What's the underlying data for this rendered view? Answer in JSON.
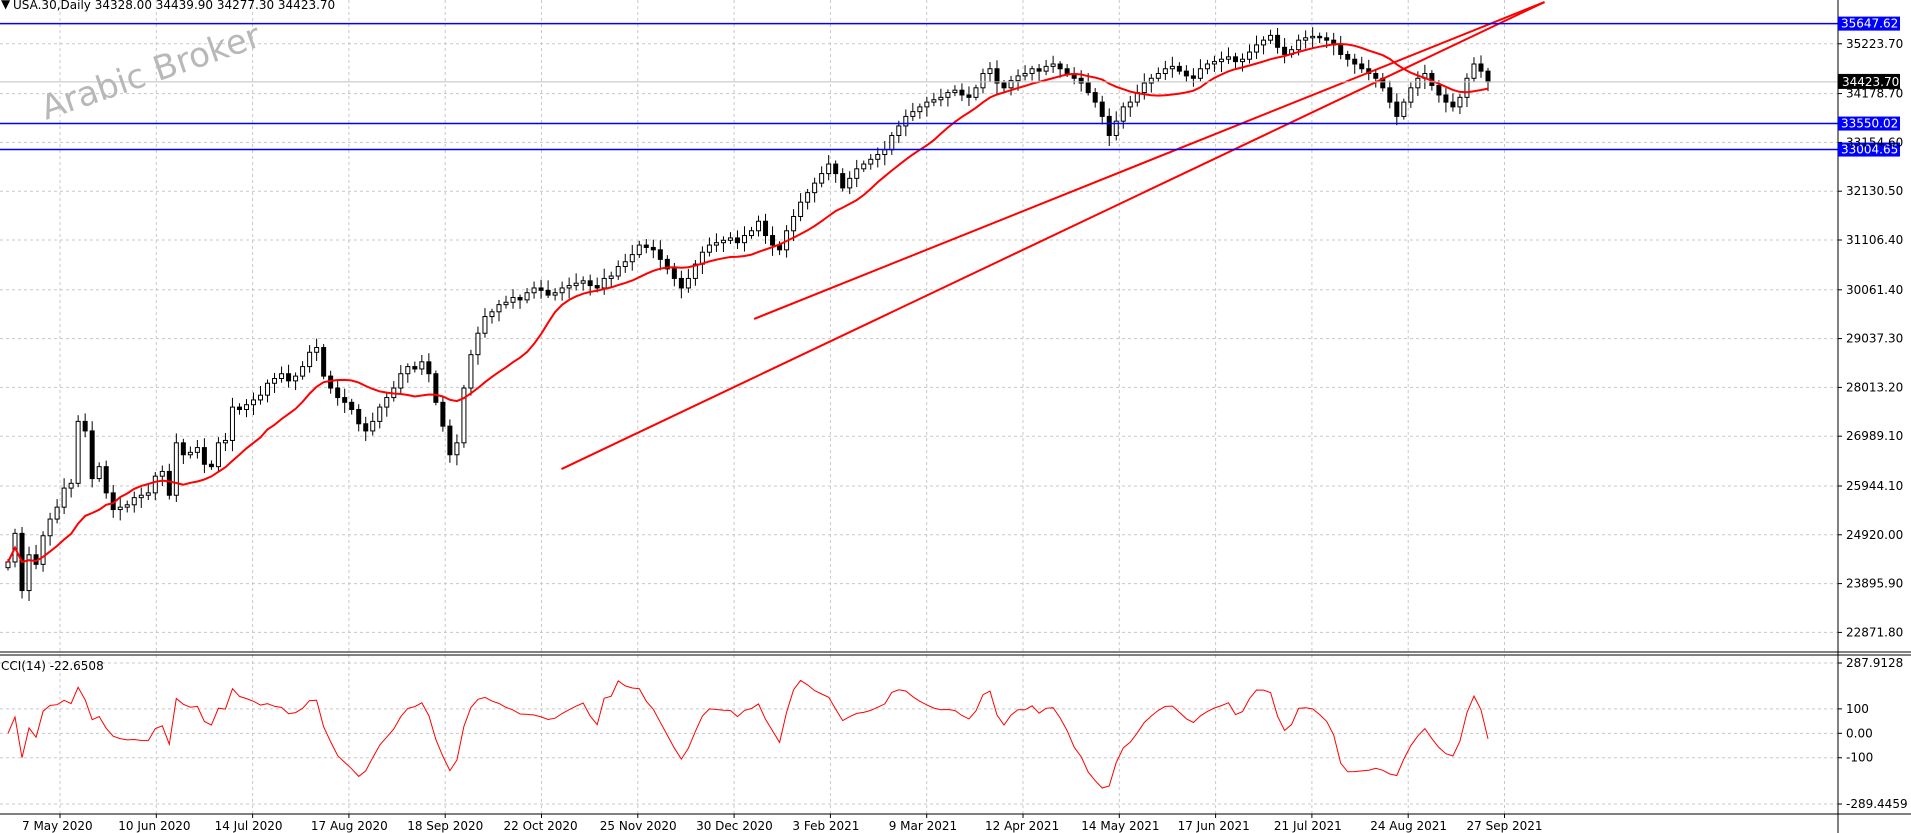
{
  "header": {
    "arrow_glyph": "▼",
    "symbol_text": "USA.30,Daily  34328.00 34439.90 34277.30 34423.70"
  },
  "watermark": {
    "text": "Arabic Broker"
  },
  "colors": {
    "background": "#ffffff",
    "grid": "#c8c8c8",
    "candle": "#000000",
    "moving_average": "#ff0000",
    "trendline": "#ff0000",
    "hline": "#0000ff",
    "hline_tag_bg": "#0000ff",
    "current_price_tag_bg": "#000000",
    "indicator": "#ff0000"
  },
  "chart_data": [
    {
      "type": "candlestick",
      "series_name": "USA.30,Daily",
      "x_ticks": [
        "7 May 2020",
        "10 Jun 2020",
        "14 Jul 2020",
        "17 Aug 2020",
        "18 Sep 2020",
        "22 Oct 2020",
        "25 Nov 2020",
        "30 Dec 2020",
        "3 Feb 2021",
        "9 Mar 2021",
        "12 Apr 2021",
        "14 May 2021",
        "17 Jun 2021",
        "21 Jul 2021",
        "24 Aug 2021",
        "27 Sep 2021"
      ],
      "y_ticks": [
        22871.8,
        23895.9,
        24920.0,
        25944.1,
        26989.1,
        28013.2,
        29037.3,
        30061.4,
        31106.4,
        32130.5,
        33154.6,
        34178.7,
        35223.7
      ],
      "ylim": [
        22000,
        35900
      ],
      "closes": [
        24350,
        24950,
        23750,
        24500,
        24300,
        24900,
        25250,
        25500,
        25900,
        26000,
        27300,
        27100,
        26100,
        26350,
        25800,
        25450,
        25500,
        25550,
        25700,
        25750,
        25800,
        26150,
        26250,
        25750,
        26850,
        26600,
        26650,
        26750,
        26400,
        26350,
        26850,
        26900,
        27600,
        27550,
        27650,
        27750,
        27850,
        28100,
        28200,
        28300,
        28150,
        28250,
        28450,
        28750,
        28850,
        28250,
        28000,
        27800,
        27700,
        27550,
        27250,
        27100,
        27300,
        27600,
        27800,
        28000,
        28300,
        28450,
        28400,
        28550,
        28300,
        27700,
        27200,
        26600,
        26850,
        28000,
        28700,
        29150,
        29500,
        29600,
        29750,
        29800,
        29900,
        29850,
        30000,
        30100,
        30050,
        29950,
        30000,
        30100,
        30150,
        30200,
        30250,
        30150,
        30100,
        30300,
        30350,
        30550,
        30650,
        30800,
        31000,
        30950,
        30900,
        30700,
        30500,
        30300,
        30100,
        30300,
        30600,
        30850,
        31000,
        31050,
        31100,
        31150,
        31050,
        31200,
        31300,
        31500,
        31200,
        31000,
        30900,
        31300,
        31600,
        31900,
        32100,
        32300,
        32500,
        32700,
        32500,
        32200,
        32400,
        32600,
        32700,
        32800,
        32900,
        33000,
        33300,
        33500,
        33700,
        33800,
        33900,
        34000,
        34050,
        34100,
        34200,
        34250,
        34150,
        34100,
        34300,
        34600,
        34700,
        34400,
        34300,
        34450,
        34550,
        34600,
        34700,
        34650,
        34750,
        34800,
        34700,
        34600,
        34500,
        34400,
        34200,
        34000,
        33700,
        33300,
        33600,
        33900,
        34000,
        34200,
        34400,
        34500,
        34600,
        34700,
        34750,
        34650,
        34550,
        34500,
        34700,
        34800,
        34850,
        34900,
        34950,
        34850,
        34900,
        35050,
        35200,
        35300,
        35400,
        35150,
        35000,
        35100,
        35300,
        35350,
        35380,
        35350,
        35300,
        35200,
        35000,
        34900,
        34800,
        34700,
        34600,
        34500,
        34300,
        34000,
        33700,
        34000,
        34300,
        34500,
        34600,
        34350,
        34150,
        34000,
        33900,
        34100,
        34500,
        34800,
        34650,
        34423.7
      ],
      "moving_average_period": 14,
      "trendlines": [
        {
          "from": [
            "22 Oct 2020",
            26300
          ],
          "to": [
            "27 Sep 2021",
            36100
          ]
        },
        {
          "from": [
            "30 Dec 2020",
            29450
          ],
          "to": [
            "27 Sep 2021",
            36100
          ]
        }
      ],
      "horizontal_lines": [
        {
          "value": 35647.62,
          "label": "35647.62"
        },
        {
          "value": 33550.02,
          "label": "33550.02"
        },
        {
          "value": 33004.65,
          "label": "33004.65"
        }
      ],
      "current_price": {
        "value": 34423.7,
        "label": "34423.70"
      },
      "grid": true
    },
    {
      "type": "line",
      "series_name": "CCI(14)",
      "title": "CCI(14) -22.6508",
      "y_ticks": [
        287.9128,
        100,
        0.0,
        -100,
        -289.4459
      ],
      "y_tick_labels": [
        "287.9128",
        "100",
        "0.00",
        "-100",
        "-289.4459"
      ],
      "ylim": [
        -289.4459,
        287.9128
      ],
      "last_value": -22.6508,
      "grid": true
    }
  ]
}
